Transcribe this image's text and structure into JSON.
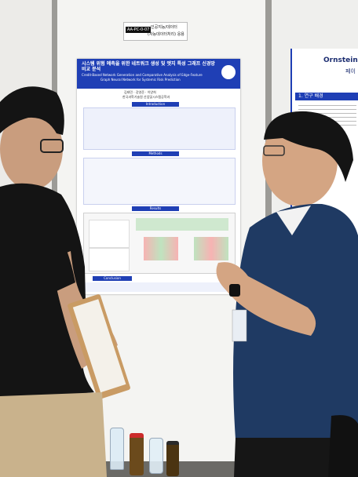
{
  "scene": {
    "description_tags": [
      "poster-session",
      "two-people",
      "poster-board",
      "bottles"
    ]
  },
  "board_label": {
    "line1": "AA-PC-0-07",
    "line2": "인공지능/데이터",
    "line3": "(자능데이터처리) 응용"
  },
  "poster": {
    "title_kr": "시스템 위험 예측을 위한 네트워크 생성 및 엣지 특성 그래프 신경망 비교 분석",
    "title_en_1": "Credit-Based Network Generation and Comparative Analysis of Edge-Feature",
    "title_en_2": "Graph Neural Network for Systemic Risk Prediction",
    "authors": "김태민 · 강영준 · 이양희",
    "affiliation": "한국과학기술원 산업및시스템공학과",
    "sections": {
      "introduction": "Introduction",
      "methods": "Methods",
      "results": "Results",
      "conclusion": "Conclusion"
    }
  },
  "right_poster": {
    "title": "Ornstein-Uh",
    "subtitle": "페이",
    "section": "1. 연구 배경"
  },
  "colors": {
    "poster_blue": "#1f3fb5",
    "board_white": "#f2f2f0",
    "shirt_navy": "#1f3a63",
    "shirt_black": "#141414"
  }
}
